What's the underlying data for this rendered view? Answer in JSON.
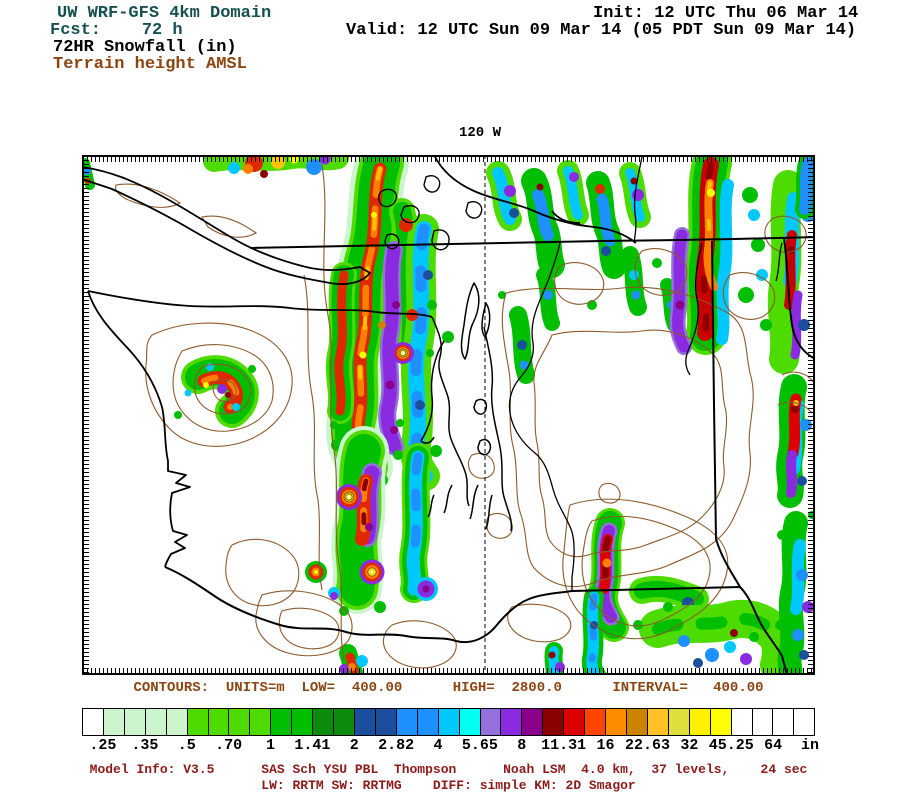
{
  "header": {
    "model_line": "UW WRF-GFS 4km Domain",
    "fcst_line": "Fcst:    72 h",
    "product_line": "72HR Snowfall (in)",
    "terrain_line": "Terrain height AMSL",
    "init_line": "Init: 12 UTC Thu 06 Mar 14",
    "valid_line": "Valid: 12 UTC Sun 09 Mar 14 (05 PDT Sun 09 Mar 14)"
  },
  "map": {
    "longitude_label": "120 W"
  },
  "contour_info": {
    "text": "CONTOURS:  UNITS=m  LOW=  400.00      HIGH=  2800.0      INTERVAL=   400.00"
  },
  "colorbar": {
    "unit": "in",
    "tick_labels": [
      ".25",
      ".35",
      ".5",
      ".70",
      "1",
      "1.41",
      "2",
      "2.82",
      "4",
      "5.65",
      "8",
      "11.31",
      "16",
      "22.63",
      "32",
      "45.25",
      "64"
    ],
    "cells": [
      "#FFFFFF",
      "#CDF5CD",
      "#CDF5CD",
      "#CDF5CD",
      "#CDF5CD",
      "#4EDB00",
      "#4EDB00",
      "#4EDB00",
      "#4EDB00",
      "#00BE00",
      "#00BE00",
      "#0B8A0B",
      "#0B8A0B",
      "#1C4E9E",
      "#1C4E9E",
      "#1E90FF",
      "#1E90FF",
      "#00C8FF",
      "#00FFF0",
      "#9370DB",
      "#8A2BE2",
      "#8B008B",
      "#8B0000",
      "#DD0000",
      "#FF4500",
      "#FF8C00",
      "#CC8400",
      "#FFC125",
      "#DFDF3C",
      "#FFF200",
      "#FFFF00",
      "#FFFFFF",
      "#FFFFFF",
      "#FFFFFF",
      "#FFFFFF"
    ]
  },
  "footer": {
    "line1": "Model Info: V3.5      SAS Sch YSU PBL  Thompson      Noah LSM  4.0 km,  37 levels,    24 sec",
    "line2": "LW: RRTM SW: RRTMG    DIFF: simple KM: 2D Smagor"
  },
  "colors": {
    "title_text": "#175050",
    "terrain_text": "#8B4513",
    "contour_line": "#8B5A2B",
    "model_info_text": "#8B1A1A"
  }
}
